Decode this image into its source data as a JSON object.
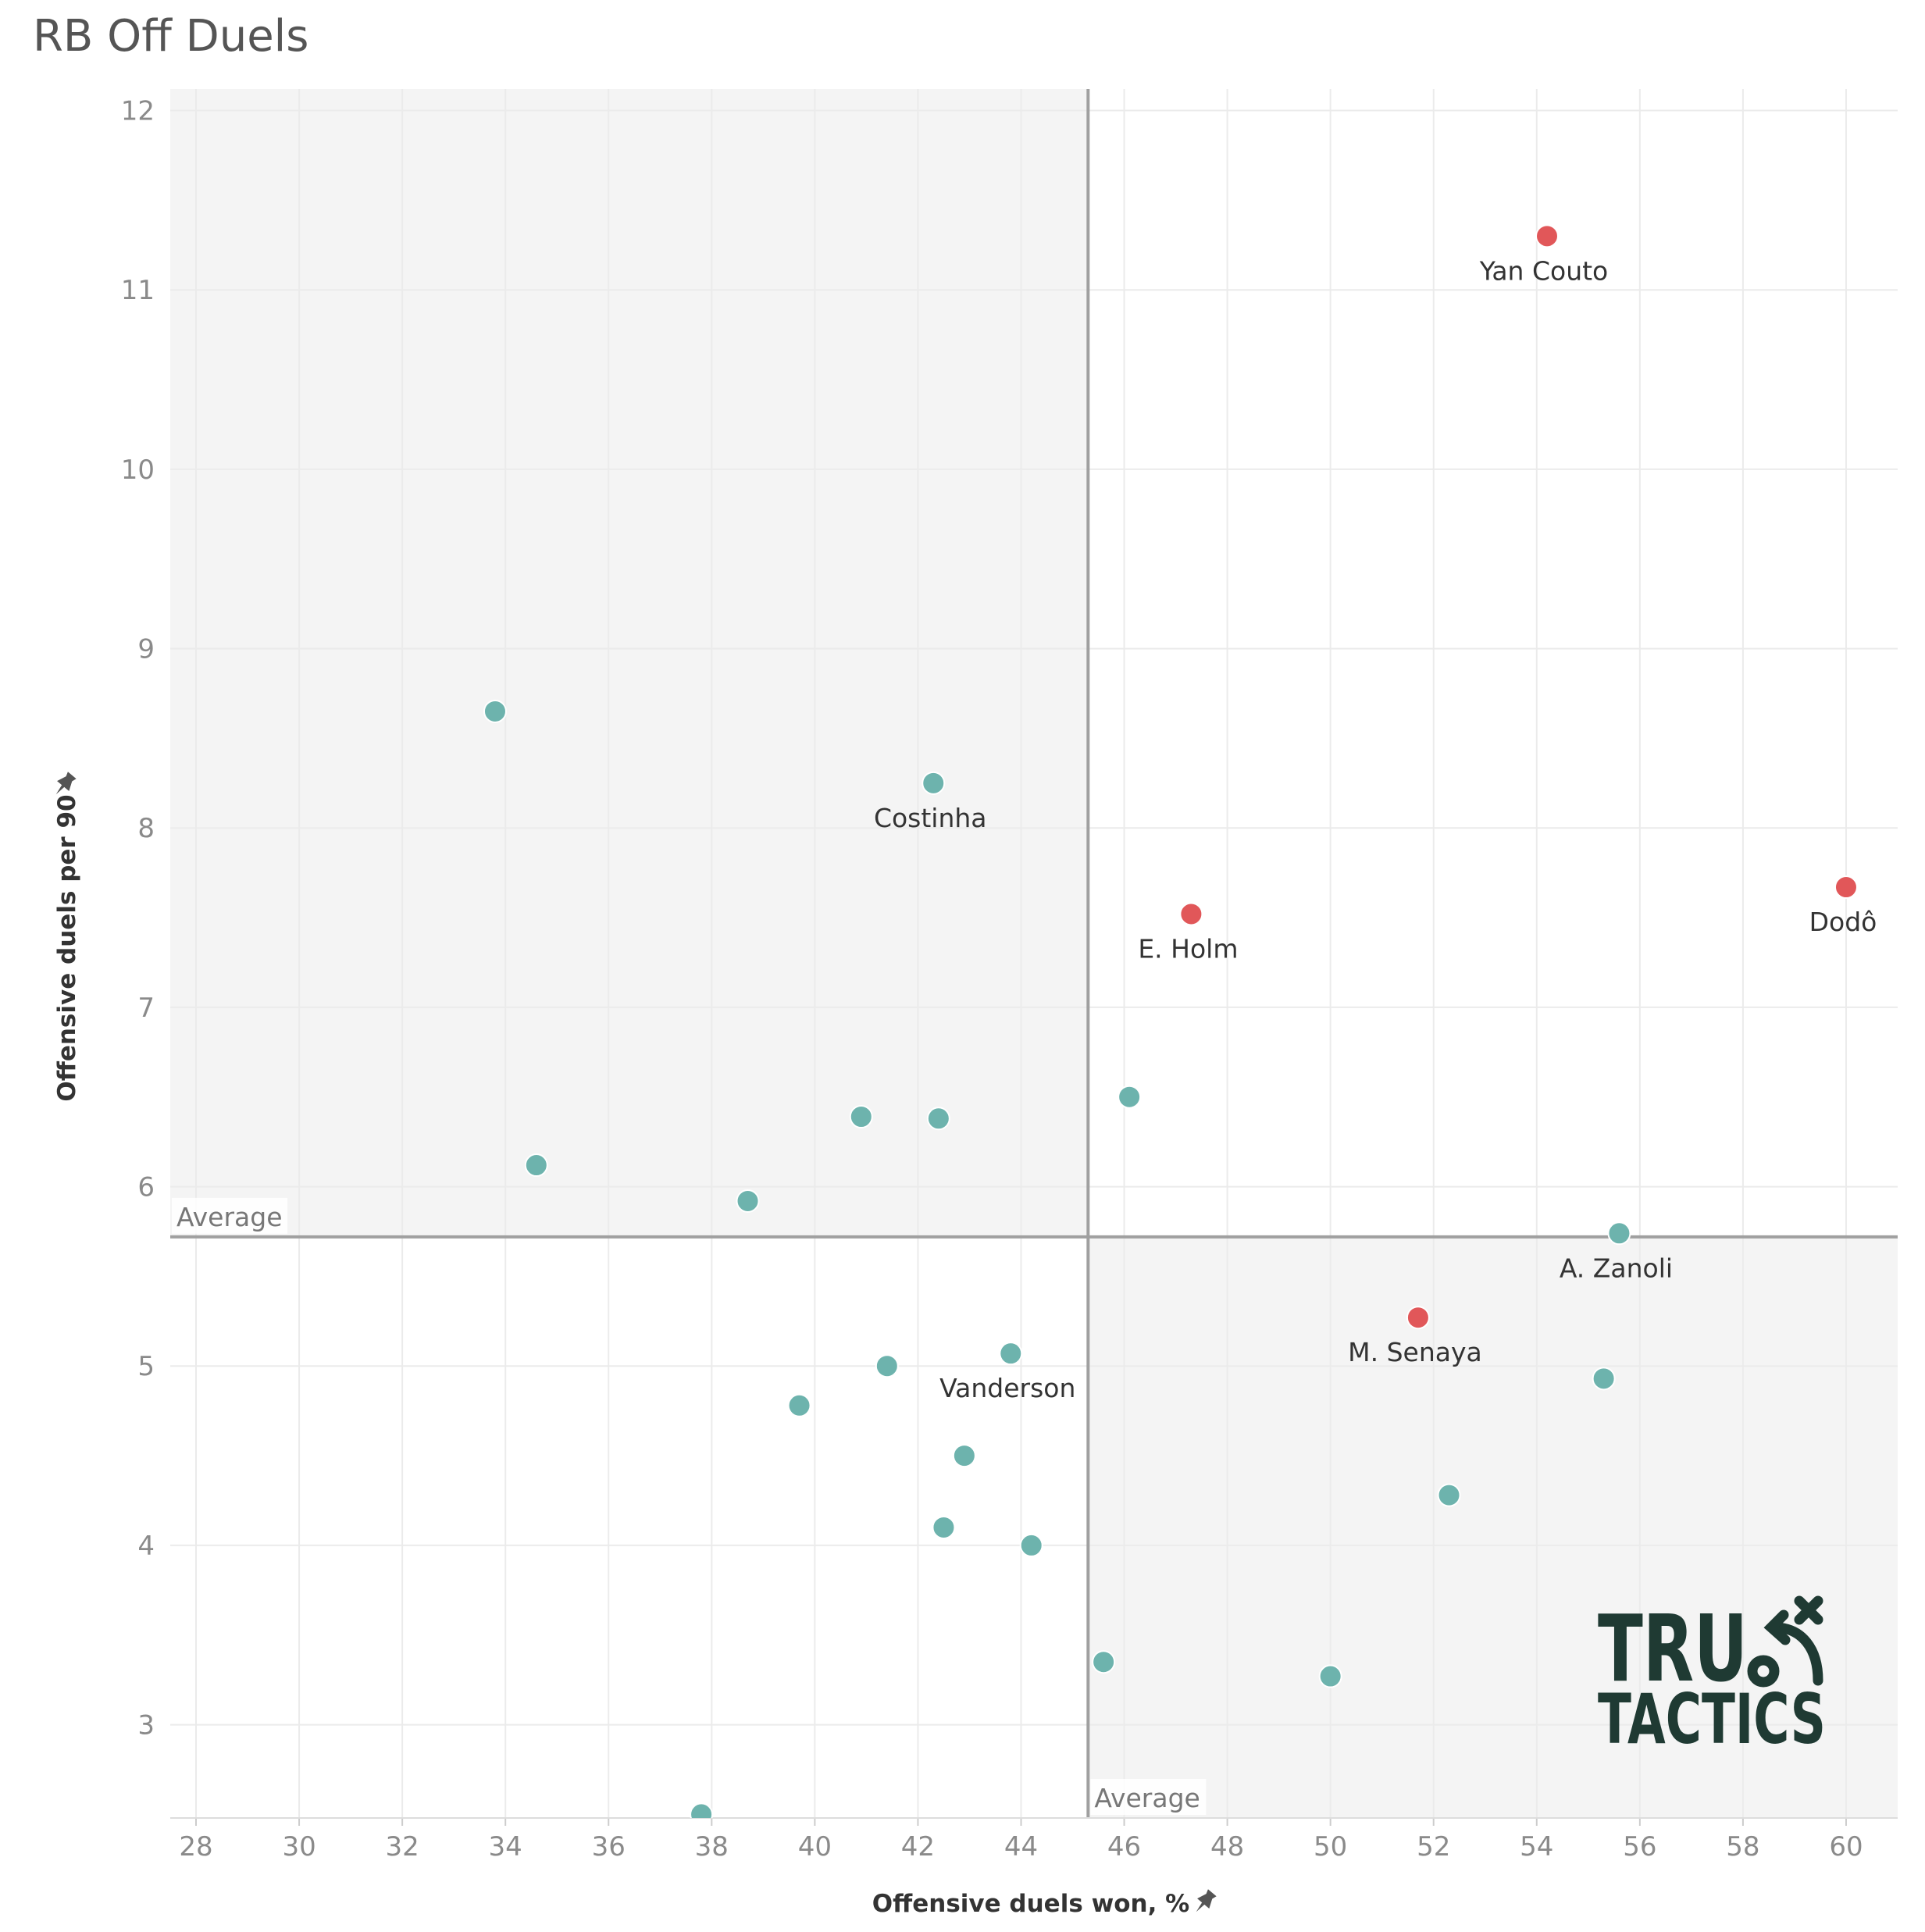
{
  "colors": {
    "highlight": "#e15759",
    "default": "#6db3ad",
    "quadrant_shade": "#f4f4f4",
    "reference_line": "#a0a0a0",
    "grid": "#ebebeb",
    "logo": "#1f3a33"
  },
  "icons": {
    "axis_pin": "pin-icon"
  },
  "logo": {
    "line1": "TRU",
    "line2": "TACTICS"
  },
  "chart_data": {
    "type": "scatter",
    "title": "RB Off Duels",
    "xlabel": "Offensive duels won, %",
    "ylabel": "Offensive duels per 90",
    "xlim": [
      27.5,
      61
    ],
    "ylim": [
      2.48,
      12.12
    ],
    "xticks": [
      28,
      30,
      32,
      34,
      36,
      38,
      40,
      42,
      44,
      46,
      48,
      50,
      52,
      54,
      56,
      58,
      60
    ],
    "yticks": [
      3,
      4,
      5,
      6,
      7,
      8,
      9,
      10,
      11,
      12
    ],
    "grid": true,
    "reference_lines": {
      "x_average": 45.3,
      "y_average": 5.72,
      "label": "Average"
    },
    "points": [
      {
        "x": 54.2,
        "y": 11.3,
        "label": "Yan Couto",
        "highlight": true
      },
      {
        "x": 60.0,
        "y": 7.67,
        "label": "Dodô",
        "highlight": true
      },
      {
        "x": 47.3,
        "y": 7.52,
        "label": "E. Holm",
        "highlight": true
      },
      {
        "x": 51.7,
        "y": 5.27,
        "label": "M. Senaya",
        "highlight": true
      },
      {
        "x": 42.3,
        "y": 8.25,
        "label": "Costinha",
        "highlight": false
      },
      {
        "x": 55.6,
        "y": 5.74,
        "label": "A. Zanoli",
        "highlight": false
      },
      {
        "x": 43.8,
        "y": 5.07,
        "label": "Vanderson",
        "highlight": false
      },
      {
        "x": 33.8,
        "y": 8.65,
        "label": "",
        "highlight": false
      },
      {
        "x": 34.6,
        "y": 6.12,
        "label": "",
        "highlight": false
      },
      {
        "x": 38.7,
        "y": 5.92,
        "label": "",
        "highlight": false
      },
      {
        "x": 40.9,
        "y": 6.39,
        "label": "",
        "highlight": false
      },
      {
        "x": 42.4,
        "y": 6.38,
        "label": "",
        "highlight": false
      },
      {
        "x": 46.1,
        "y": 6.5,
        "label": "",
        "highlight": false
      },
      {
        "x": 41.4,
        "y": 5.0,
        "label": "",
        "highlight": false
      },
      {
        "x": 39.7,
        "y": 4.78,
        "label": "",
        "highlight": false
      },
      {
        "x": 42.9,
        "y": 4.5,
        "label": "",
        "highlight": false
      },
      {
        "x": 42.5,
        "y": 4.1,
        "label": "",
        "highlight": false
      },
      {
        "x": 44.2,
        "y": 4.0,
        "label": "",
        "highlight": false
      },
      {
        "x": 55.3,
        "y": 4.93,
        "label": "",
        "highlight": false
      },
      {
        "x": 52.3,
        "y": 4.28,
        "label": "",
        "highlight": false
      },
      {
        "x": 45.6,
        "y": 3.35,
        "label": "",
        "highlight": false
      },
      {
        "x": 50.0,
        "y": 3.27,
        "label": "",
        "highlight": false
      },
      {
        "x": 37.8,
        "y": 2.5,
        "label": "",
        "highlight": false
      }
    ]
  }
}
